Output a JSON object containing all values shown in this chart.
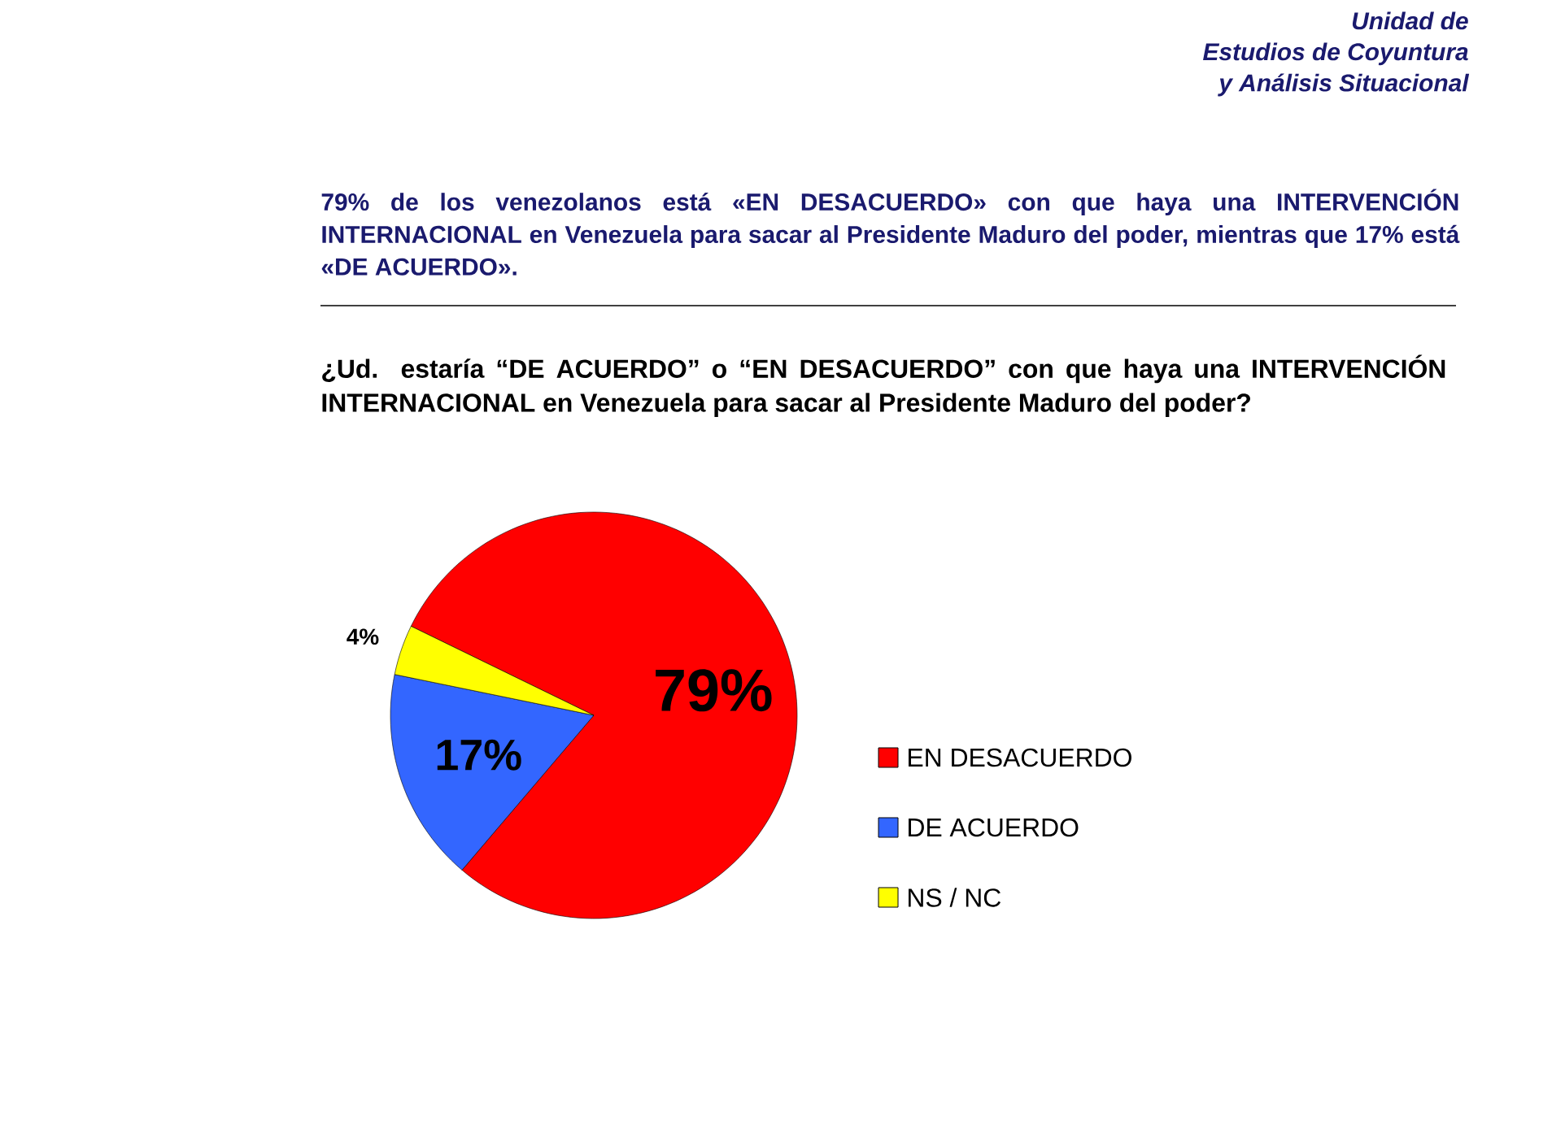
{
  "chart_data": {
    "type": "pie",
    "title": "79% de los venezolanos está «EN DESACUERDO» con que haya una INTERVENCIÓN INTERNACIONAL en Venezuela para sacar al Presidente Maduro del poder, mientras que 17% está «DE ACUERDO».",
    "subtitle": "¿Ud. estaría “DE ACUERDO” o “EN DESACUERDO” con que haya una INTERVENCIÓN INTERNACIONAL en Venezuela para sacar al Presidente Maduro del poder?",
    "annotations": [
      "Unidad de",
      "Estudios de Coyuntura",
      "y Análisis Situacional"
    ],
    "categories": [
      "EN DESACUERDO",
      "DE ACUERDO",
      "NS / NC"
    ],
    "values": [
      79,
      17,
      4
    ],
    "colors": [
      "#ff0000",
      "#3366ff",
      "#ffff00"
    ],
    "value_labels": [
      "79%",
      "17%",
      "4%"
    ],
    "legend": "right"
  }
}
